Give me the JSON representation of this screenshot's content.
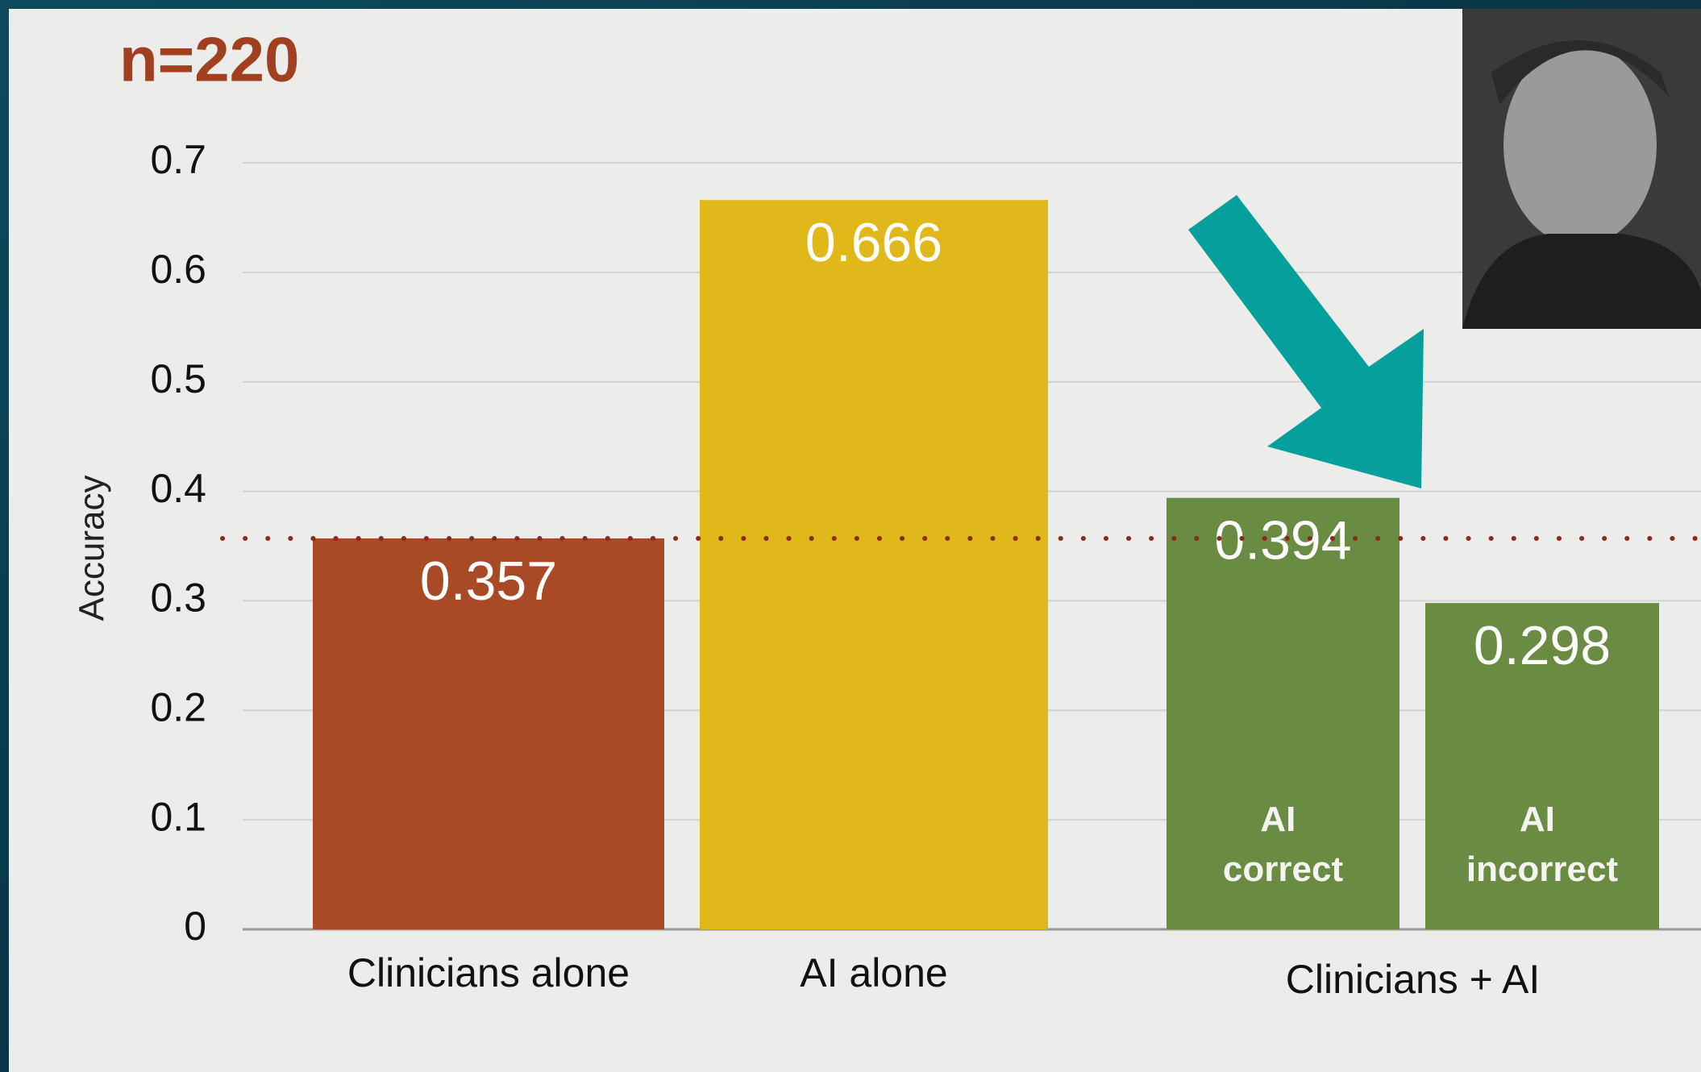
{
  "chart_data": {
    "type": "bar",
    "annotation": "n=220",
    "y_label": "Accuracy",
    "categories": [
      "Clinicians alone",
      "AI alone",
      null,
      null
    ],
    "inner_labels": [
      null,
      null,
      "AI correct",
      "AI incorrect"
    ],
    "group_label": "Clinicians + AI",
    "values": [
      0.357,
      0.666,
      0.394,
      0.298
    ],
    "colors": [
      "#a84a26",
      "#e1b81a",
      "#6a8c42",
      "#6a8c42"
    ],
    "reference_line": {
      "value": 0.357,
      "color": "#8b2a1e",
      "style": "dotted"
    },
    "ylim": [
      0,
      0.7
    ],
    "yticks": [
      0,
      0.1,
      0.2,
      0.3,
      0.4,
      0.5,
      0.6,
      0.7
    ],
    "grid": true
  }
}
